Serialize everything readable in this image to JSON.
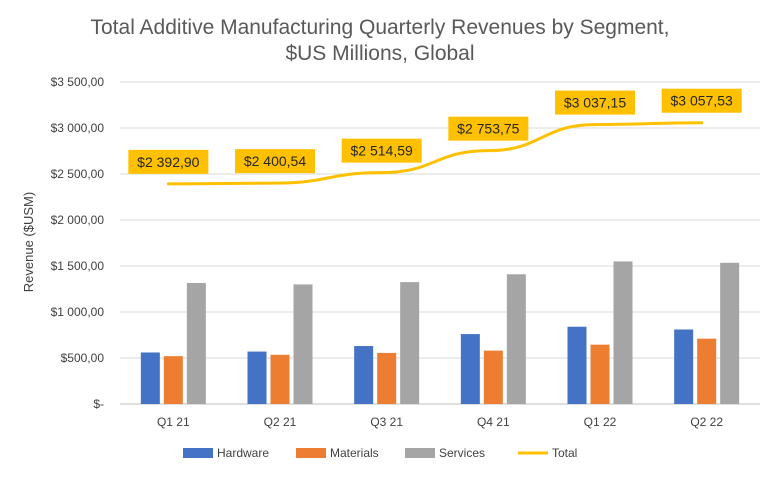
{
  "chart_data": {
    "type": "bar",
    "title": "Total Additive Manufacturing Quarterly Revenues by Segment,",
    "subtitle": "$US Millions, Global",
    "xlabel": "",
    "ylabel": "Revenue ($USM)",
    "ylim": [
      0,
      3500
    ],
    "yticks": [
      0,
      500,
      1000,
      1500,
      2000,
      2500,
      3000,
      3500
    ],
    "ytick_labels": [
      "$-",
      "$500,00",
      "$1 000,00",
      "$1 500,00",
      "$2 000,00",
      "$2 500,00",
      "$3 000,00",
      "$3 500,00"
    ],
    "grid": true,
    "legend_position": "bottom",
    "categories": [
      "Q1 21",
      "Q2 21",
      "Q3 21",
      "Q4 21",
      "Q1 22",
      "Q2 22"
    ],
    "series": [
      {
        "name": "Hardware",
        "type": "bar",
        "color": "#4472c4",
        "values": [
          560,
          570,
          630,
          760,
          840,
          810
        ]
      },
      {
        "name": "Materials",
        "type": "bar",
        "color": "#ed7d31",
        "values": [
          520,
          535,
          555,
          580,
          645,
          710
        ]
      },
      {
        "name": "Services",
        "type": "bar",
        "color": "#a5a5a5",
        "values": [
          1315,
          1300,
          1325,
          1410,
          1550,
          1535
        ]
      },
      {
        "name": "Total",
        "type": "line",
        "color": "#ffc000",
        "values": [
          2392.9,
          2400.54,
          2514.59,
          2753.75,
          3037.15,
          3057.53
        ]
      }
    ],
    "data_labels": [
      "$2 392,90",
      "$2 400,54",
      "$2 514,59",
      "$2 753,75",
      "$3 037,15",
      "$3 057,53"
    ]
  }
}
